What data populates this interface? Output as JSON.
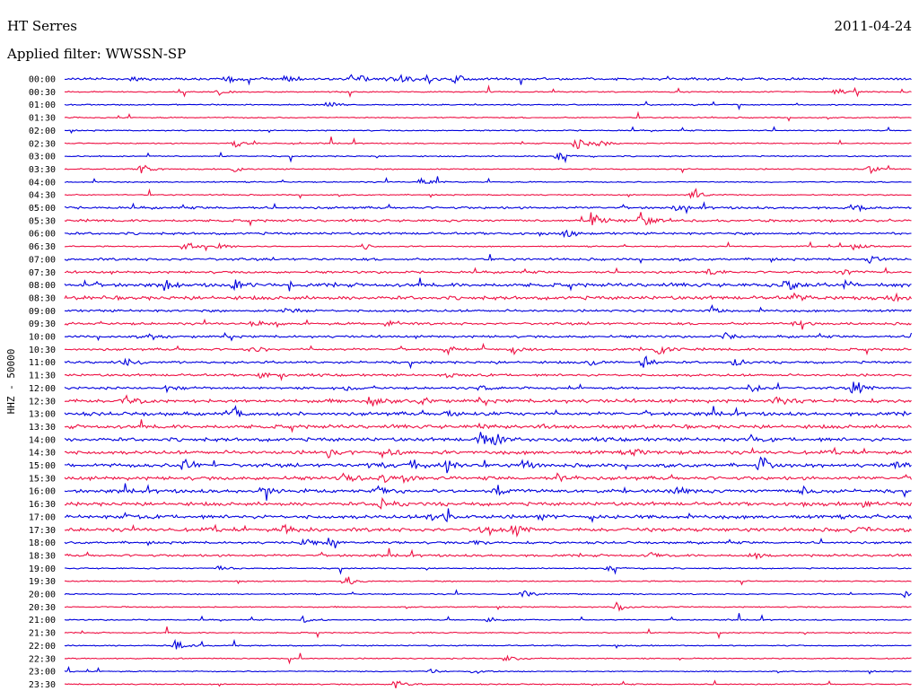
{
  "header": {
    "station": "HT Serres",
    "date": "2011-04-24",
    "filter_label": "Applied filter: WWSSN-SP",
    "channel_label": "HHZ - 50000"
  },
  "colors": {
    "trace_a": "#0000dd",
    "trace_b": "#ee1144",
    "text": "#000000"
  },
  "chart_data": {
    "type": "line",
    "title": "HT Serres",
    "subtitle": "Applied filter: WWSSN-SP",
    "date": "2011-04-24",
    "ylabel": "HHZ - 50000",
    "row_labels": [
      "00:00",
      "00:30",
      "01:00",
      "01:30",
      "02:00",
      "02:30",
      "03:00",
      "03:30",
      "04:00",
      "04:30",
      "05:00",
      "05:30",
      "06:00",
      "06:30",
      "07:00",
      "07:30",
      "08:00",
      "08:30",
      "09:00",
      "09:30",
      "10:00",
      "10:30",
      "11:00",
      "11:30",
      "12:00",
      "12:30",
      "13:00",
      "13:30",
      "14:00",
      "14:30",
      "15:00",
      "15:30",
      "16:00",
      "16:30",
      "17:00",
      "17:30",
      "18:00",
      "18:30",
      "19:00",
      "19:30",
      "20:00",
      "20:30",
      "21:00",
      "21:30",
      "22:00",
      "22:30",
      "23:00",
      "23:30"
    ],
    "series": [
      {
        "color": "#0000dd"
      },
      {
        "color": "#ee1144"
      }
    ],
    "noise_level": [
      2,
      1,
      1,
      0,
      1,
      1,
      1,
      1,
      1,
      1,
      2,
      2,
      2,
      1,
      2,
      2,
      3,
      3,
      2,
      2,
      2,
      2,
      2,
      2,
      2,
      3,
      3,
      3,
      3,
      3,
      3,
      3,
      3,
      3,
      3,
      3,
      2,
      2,
      1,
      1,
      1,
      1,
      1,
      1,
      1,
      1,
      1,
      1
    ],
    "events": [
      [
        [
          0.08,
          0.3
        ],
        [
          0.19,
          0.4
        ],
        [
          0.26,
          0.4
        ],
        [
          0.34,
          0.7
        ],
        [
          0.38,
          0.4
        ],
        [
          0.4,
          0.4
        ],
        [
          0.43,
          0.5
        ],
        [
          0.46,
          0.4
        ]
      ],
      [
        [
          0.18,
          0.3
        ],
        [
          0.91,
          0.4
        ]
      ],
      [
        [
          0.31,
          0.4
        ]
      ],
      [],
      [],
      [
        [
          0.2,
          0.5
        ],
        [
          0.6,
          0.9
        ],
        [
          0.63,
          0.4
        ]
      ],
      [
        [
          0.58,
          0.6
        ]
      ],
      [
        [
          0.09,
          0.7
        ],
        [
          0.2,
          0.3
        ],
        [
          0.95,
          0.4
        ]
      ],
      [
        [
          0.42,
          0.4
        ]
      ],
      [
        [
          0.74,
          0.6
        ]
      ],
      [
        [
          0.72,
          0.3
        ],
        [
          0.93,
          0.4
        ]
      ],
      [
        [
          0.62,
          1.0
        ],
        [
          0.68,
          0.7
        ]
      ],
      [
        [
          0.59,
          0.5
        ]
      ],
      [
        [
          0.14,
          0.6
        ],
        [
          0.18,
          0.5
        ],
        [
          0.35,
          0.4
        ],
        [
          0.93,
          0.4
        ]
      ],
      [
        [
          0.95,
          0.4
        ]
      ],
      [
        [
          0.76,
          0.3
        ],
        [
          0.92,
          0.3
        ]
      ],
      [
        [
          0.12,
          0.4
        ],
        [
          0.2,
          0.5
        ],
        [
          0.85,
          0.6
        ],
        [
          0.92,
          0.4
        ]
      ],
      [
        [
          0.86,
          0.5
        ],
        [
          0.98,
          0.4
        ]
      ],
      [
        [
          0.26,
          0.4
        ],
        [
          0.76,
          0.4
        ]
      ],
      [
        [
          0.22,
          0.3
        ],
        [
          0.38,
          0.3
        ],
        [
          0.86,
          0.3
        ]
      ],
      [
        [
          0.1,
          0.3
        ],
        [
          0.78,
          0.3
        ]
      ],
      [
        [
          0.22,
          0.4
        ],
        [
          0.45,
          0.4
        ],
        [
          0.53,
          0.4
        ],
        [
          0.7,
          0.6
        ]
      ],
      [
        [
          0.07,
          0.4
        ],
        [
          0.62,
          0.4
        ],
        [
          0.68,
          0.7
        ],
        [
          0.79,
          0.4
        ]
      ],
      [
        [
          0.23,
          0.3
        ],
        [
          0.45,
          0.3
        ]
      ],
      [
        [
          0.12,
          0.3
        ],
        [
          0.33,
          0.3
        ],
        [
          0.49,
          0.3
        ],
        [
          0.81,
          0.4
        ],
        [
          0.93,
          0.9
        ]
      ],
      [
        [
          0.07,
          0.8
        ],
        [
          0.36,
          0.6
        ],
        [
          0.42,
          0.3
        ],
        [
          0.84,
          0.4
        ]
      ],
      [
        [
          0.2,
          0.6
        ],
        [
          0.45,
          0.4
        ]
      ],
      [
        [
          0.49,
          0.5
        ],
        [
          0.56,
          0.4
        ]
      ],
      [
        [
          0.49,
          1.0
        ],
        [
          0.51,
          0.4
        ],
        [
          0.81,
          0.4
        ]
      ],
      [
        [
          0.31,
          0.4
        ],
        [
          0.38,
          0.4
        ],
        [
          0.67,
          0.4
        ]
      ],
      [
        [
          0.14,
          0.7
        ],
        [
          0.36,
          0.5
        ],
        [
          0.41,
          0.6
        ],
        [
          0.45,
          0.7
        ],
        [
          0.54,
          0.6
        ],
        [
          0.82,
          1.0
        ],
        [
          0.98,
          0.4
        ]
      ],
      [
        [
          0.33,
          0.6
        ],
        [
          0.37,
          0.7
        ],
        [
          0.4,
          0.4
        ],
        [
          0.58,
          0.5
        ]
      ],
      [
        [
          0.23,
          0.6
        ],
        [
          0.37,
          0.4
        ],
        [
          0.51,
          0.5
        ],
        [
          0.72,
          0.5
        ],
        [
          0.87,
          0.4
        ]
      ],
      [
        [
          0.37,
          0.6
        ],
        [
          0.94,
          0.4
        ]
      ],
      [
        [
          0.07,
          0.4
        ],
        [
          0.43,
          0.4
        ],
        [
          0.45,
          0.4
        ],
        [
          0.56,
          0.4
        ]
      ],
      [
        [
          0.26,
          0.4
        ],
        [
          0.49,
          0.5
        ],
        [
          0.53,
          0.7
        ],
        [
          0.93,
          0.5
        ]
      ],
      [
        [
          0.28,
          0.5
        ],
        [
          0.31,
          0.4
        ],
        [
          0.48,
          0.3
        ]
      ],
      [
        [
          0.69,
          0.3
        ],
        [
          0.81,
          0.4
        ]
      ],
      [
        [
          0.18,
          0.3
        ],
        [
          0.64,
          0.3
        ]
      ],
      [
        [
          0.33,
          0.6
        ]
      ],
      [
        [
          0.54,
          0.4
        ],
        [
          0.99,
          0.3
        ]
      ],
      [
        [
          0.65,
          0.5
        ]
      ],
      [
        [
          0.28,
          0.4
        ],
        [
          0.5,
          0.3
        ]
      ],
      [],
      [
        [
          0.13,
          0.5
        ]
      ],
      [
        [
          0.52,
          0.4
        ]
      ],
      [
        [
          0.43,
          0.3
        ],
        [
          0.48,
          0.3
        ]
      ],
      [
        [
          0.39,
          0.5
        ]
      ]
    ]
  }
}
